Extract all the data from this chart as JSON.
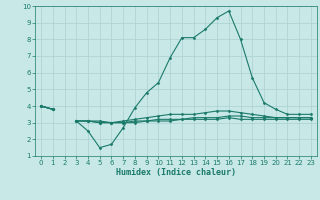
{
  "xlabel": "Humidex (Indice chaleur)",
  "x_values": [
    0,
    1,
    2,
    3,
    4,
    5,
    6,
    7,
    8,
    9,
    10,
    11,
    12,
    13,
    14,
    15,
    16,
    17,
    18,
    19,
    20,
    21,
    22,
    23
  ],
  "line1": [
    4.0,
    3.8,
    null,
    3.1,
    2.5,
    1.5,
    1.7,
    2.7,
    3.9,
    4.8,
    5.4,
    6.9,
    8.1,
    8.1,
    8.6,
    9.3,
    9.7,
    8.0,
    5.7,
    4.2,
    3.8,
    3.5,
    3.5,
    3.5
  ],
  "line2": [
    4.0,
    3.8,
    null,
    3.1,
    3.1,
    3.1,
    3.0,
    3.1,
    3.2,
    3.3,
    3.4,
    3.5,
    3.5,
    3.5,
    3.6,
    3.7,
    3.7,
    3.6,
    3.5,
    3.4,
    3.3,
    3.3,
    3.3,
    3.3
  ],
  "line3": [
    4.0,
    3.8,
    null,
    3.1,
    3.1,
    3.0,
    3.0,
    3.0,
    3.1,
    3.1,
    3.2,
    3.2,
    3.2,
    3.3,
    3.3,
    3.3,
    3.4,
    3.4,
    3.3,
    3.3,
    3.3,
    3.3,
    3.3,
    3.3
  ],
  "line4": [
    4.0,
    3.8,
    null,
    3.1,
    3.1,
    3.0,
    3.0,
    3.0,
    3.0,
    3.1,
    3.1,
    3.1,
    3.2,
    3.2,
    3.2,
    3.2,
    3.3,
    3.2,
    3.2,
    3.2,
    3.2,
    3.2,
    3.2,
    3.2
  ],
  "line_color": "#1a7a6a",
  "bg_color": "#c8e8e8",
  "grid_color": "#aad0d0",
  "ylim": [
    1,
    10
  ],
  "xlim": [
    -0.5,
    23.5
  ],
  "yticks": [
    1,
    2,
    3,
    4,
    5,
    6,
    7,
    8,
    9,
    10
  ],
  "xticks": [
    0,
    1,
    2,
    3,
    4,
    5,
    6,
    7,
    8,
    9,
    10,
    11,
    12,
    13,
    14,
    15,
    16,
    17,
    18,
    19,
    20,
    21,
    22,
    23
  ],
  "tick_fontsize": 5,
  "xlabel_fontsize": 6,
  "marker": "D",
  "markersize": 1.5,
  "linewidth": 0.8
}
